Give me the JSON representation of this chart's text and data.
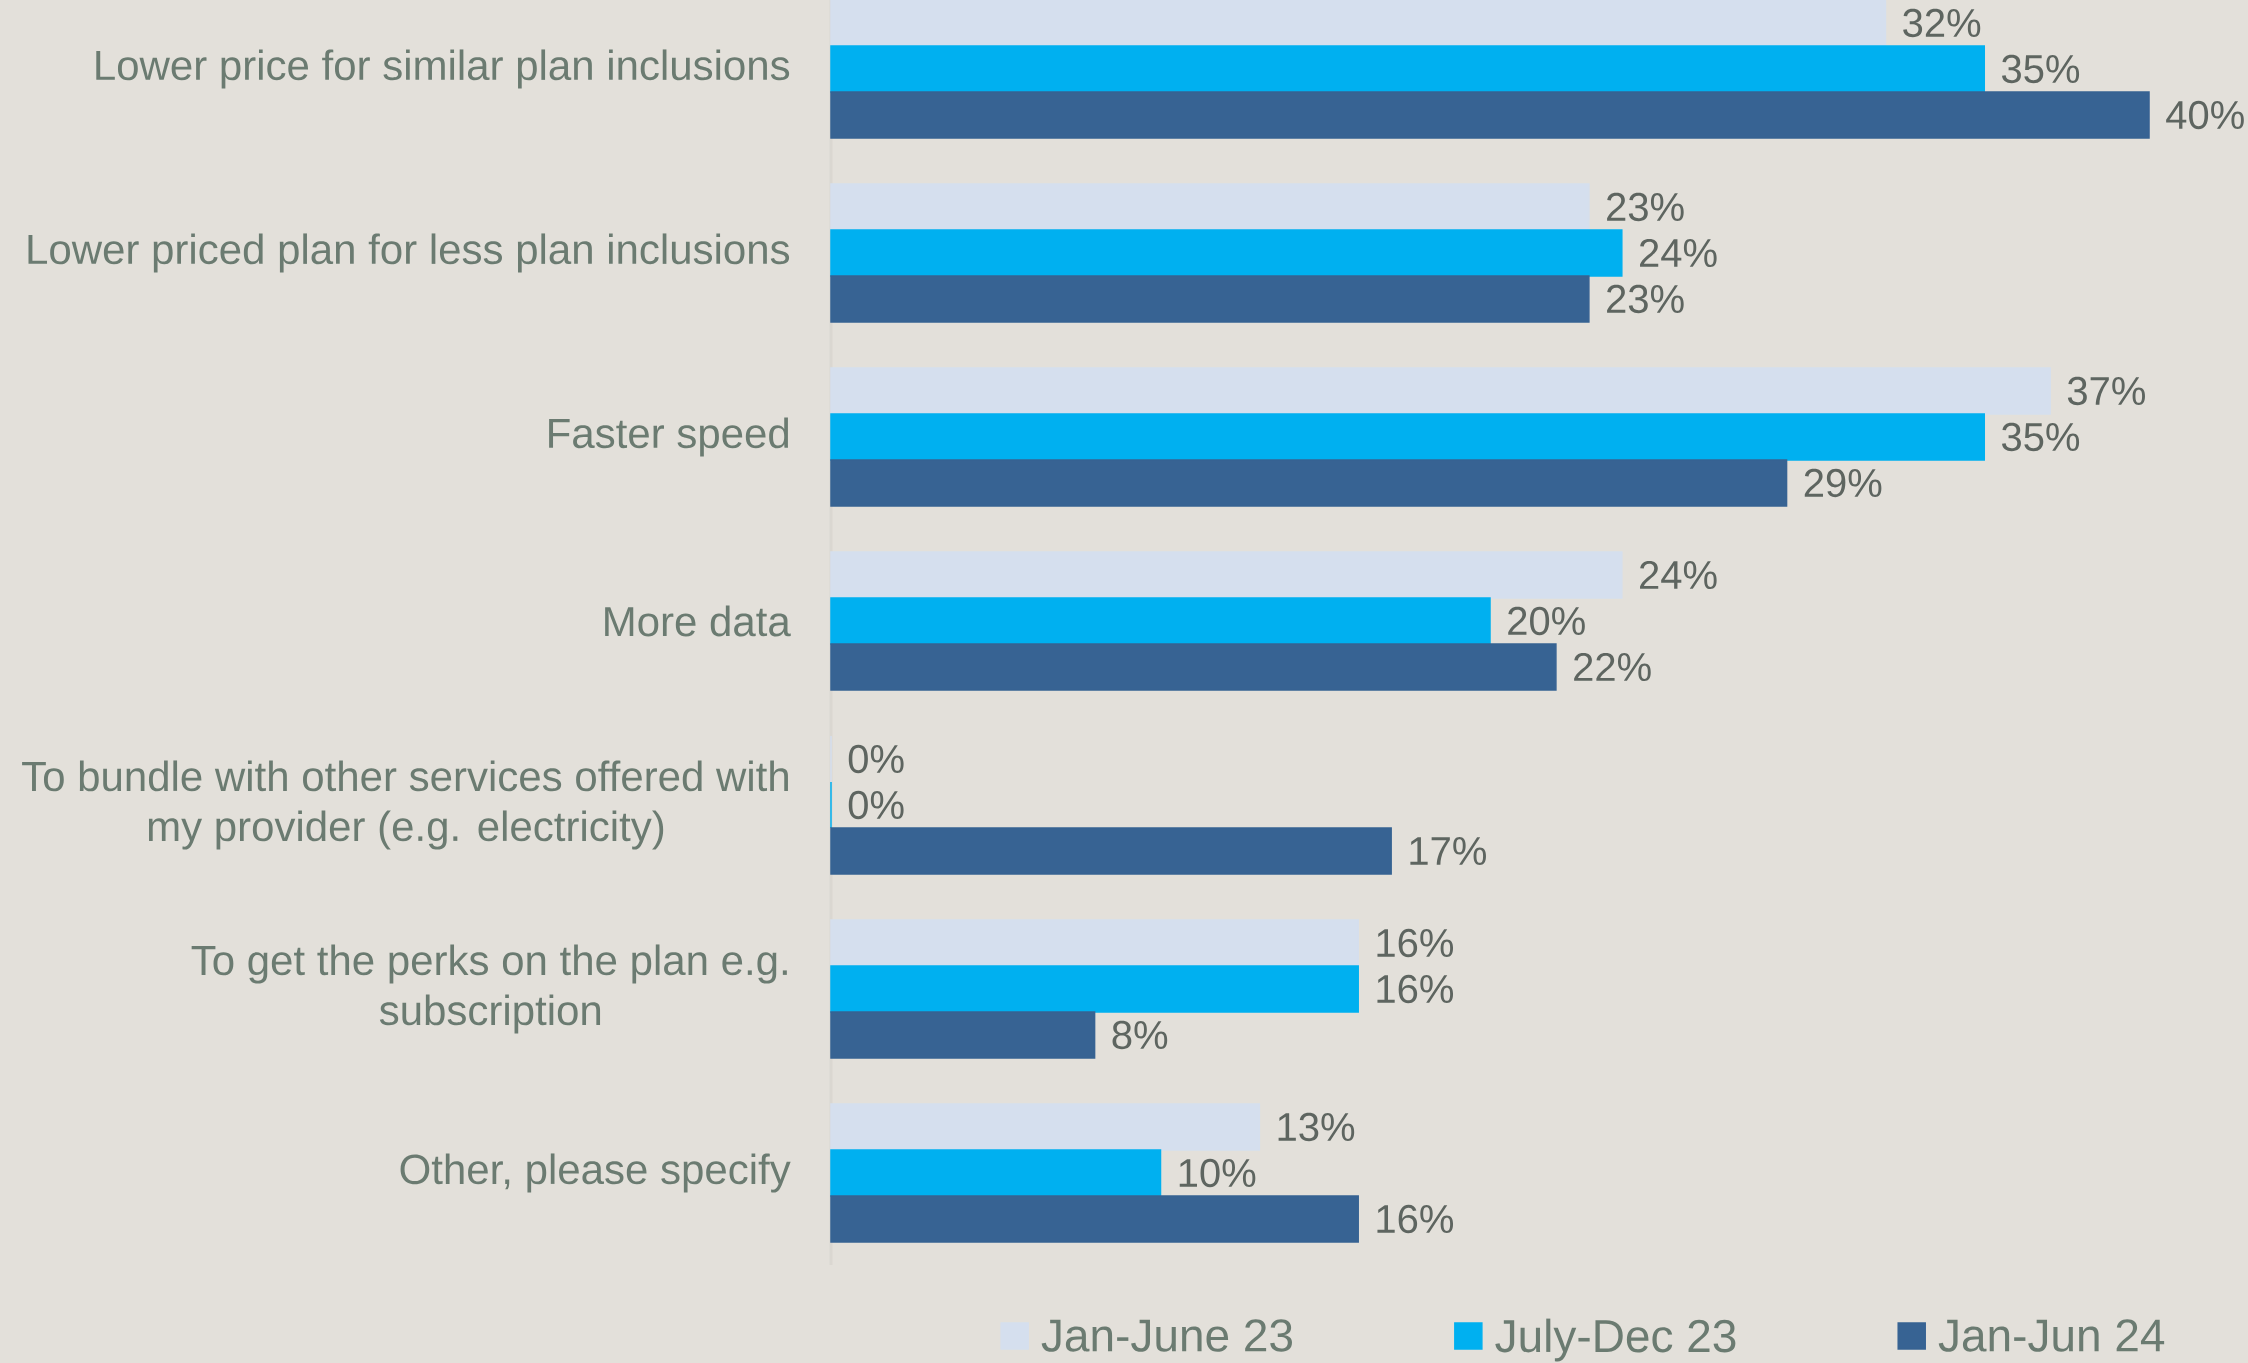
{
  "chart_data": {
    "type": "bar",
    "orientation": "horizontal",
    "categories": [
      "Lower price for similar plan inclusions",
      "Lower priced plan for less plan inclusions",
      "Faster speed",
      "More data",
      "To bundle with other services offered with my provider (e.g. electricity)",
      "To get the perks on the plan e.g. subscription",
      "Other, please specify"
    ],
    "series": [
      {
        "name": "Jan-June 23",
        "color": "#d5dfee",
        "values": [
          32,
          23,
          37,
          24,
          0,
          16,
          13
        ],
        "value_labels": [
          "32%",
          "23%",
          "37%",
          "24%",
          "0%",
          "16%",
          "13%"
        ]
      },
      {
        "name": "July-Dec 23",
        "color": "#00b0f0",
        "values": [
          35,
          24,
          35,
          20,
          0,
          16,
          10
        ],
        "value_labels": [
          "35%",
          "24%",
          "35%",
          "20%",
          "0%",
          "16%",
          "10%"
        ]
      },
      {
        "name": "Jan-Jun 24",
        "color": "#376393",
        "values": [
          40,
          23,
          29,
          22,
          17,
          8,
          16
        ],
        "value_labels": [
          "40%",
          "23%",
          "29%",
          "22%",
          "17%",
          "8%",
          "16%"
        ]
      }
    ],
    "legend": "bottom"
  }
}
